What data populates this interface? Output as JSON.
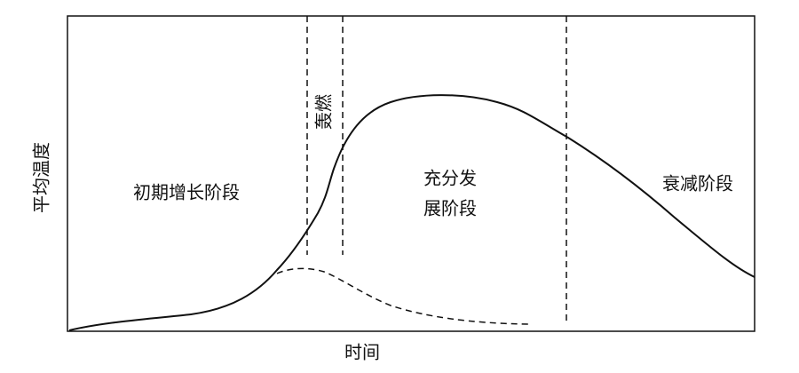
{
  "axes": {
    "y_label": "平均温度",
    "x_label": "时间"
  },
  "stages": {
    "growth": "初期增长阶段",
    "flashover": "轰燃",
    "fully_developed": [
      "充分发",
      "展阶段"
    ],
    "decay": "衰减阶段"
  }
}
